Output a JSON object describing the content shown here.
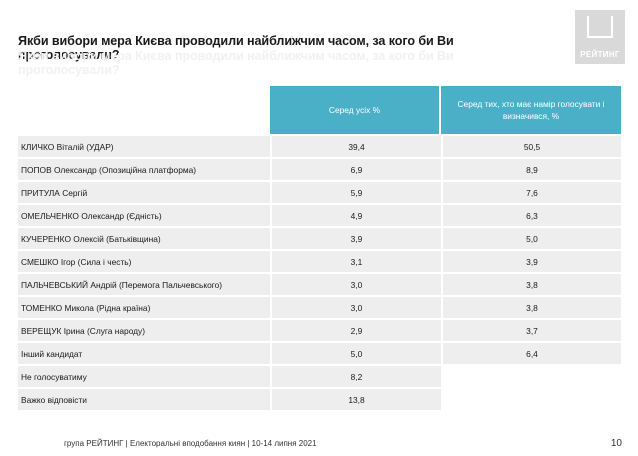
{
  "title": "Якби вибори мера Києва проводили найближчим часом, за кого би Ви проголосували?",
  "logo": {
    "text": "РЕЙТИНГ"
  },
  "table": {
    "headers": [
      "Серед усіх %",
      "Серед тих, хто має намір голосувати і визначився, %"
    ],
    "rows": [
      {
        "name": "КЛИЧКО Віталій (УДАР)",
        "all": "39,4",
        "decided": "50,5"
      },
      {
        "name": "ПОПОВ Олександр (Опозиційна платформа)",
        "all": "6,9",
        "decided": "8,9"
      },
      {
        "name": "ПРИТУЛА Сергій",
        "all": "5,9",
        "decided": "7,6"
      },
      {
        "name": "ОМЕЛЬЧЕНКО Олександр (Єдність)",
        "all": "4,9",
        "decided": "6,3"
      },
      {
        "name": "КУЧЕРЕНКО Олексій (Батьківщина)",
        "all": "3,9",
        "decided": "5,0"
      },
      {
        "name": "СМЕШКО Ігор (Сила і честь)",
        "all": "3,1",
        "decided": "3,9"
      },
      {
        "name": "ПАЛЬЧЕВСЬКИЙ Андрій (Перемога Пальчевського)",
        "all": "3,0",
        "decided": "3,8"
      },
      {
        "name": "ТОМЕНКО Микола (Рідна країна)",
        "all": "3,0",
        "decided": "3,8"
      },
      {
        "name": "ВЕРЕЩУК Ірина (Слуга народу)",
        "all": "2,9",
        "decided": "3,7"
      },
      {
        "name": "Інший кандидат",
        "all": "5,0",
        "decided": "6,4"
      },
      {
        "name": "Не голосуватиму",
        "all": "8,2",
        "decided": ""
      },
      {
        "name": "Важко відповісти",
        "all": "13,8",
        "decided": ""
      }
    ]
  },
  "footer": "група РЕЙТИНГ | Електоральні вподобання киян |  10-14 липня 2021",
  "page_number": "10"
}
